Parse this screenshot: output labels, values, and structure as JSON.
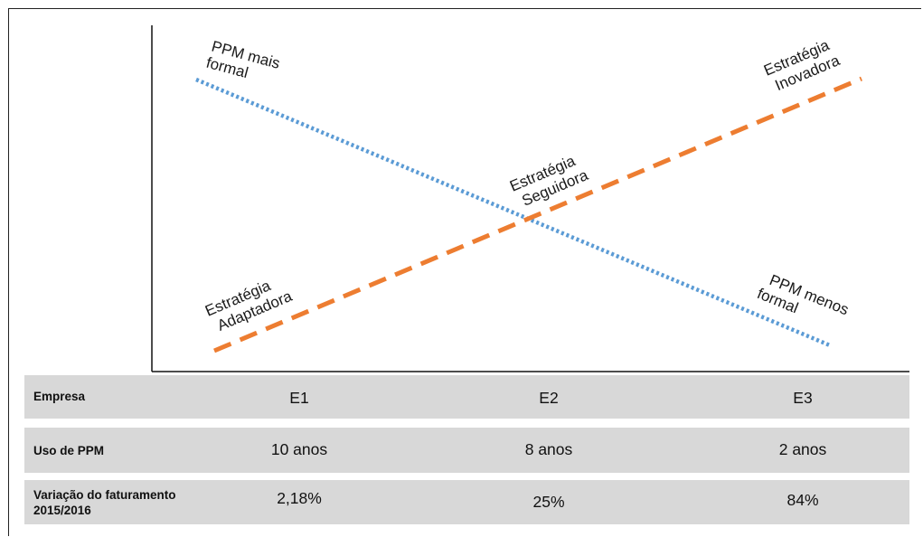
{
  "diagram": {
    "label_ppm_formal": [
      "PPM mais",
      "formal"
    ],
    "label_ppm_less_formal": [
      "PPM menos",
      "formal"
    ],
    "label_innovative": [
      "Estratégia",
      "Inovadora"
    ],
    "label_follower": [
      "Estratégia",
      "Seguidora"
    ],
    "label_adaptive": [
      "Estratégia",
      "Adaptadora"
    ],
    "colors": {
      "dotted_line": "#5b9bd5",
      "dashed_line": "#ed7d31"
    }
  },
  "table": {
    "rows": [
      {
        "header": "Empresa",
        "values": [
          "E1",
          "E2",
          "E3"
        ]
      },
      {
        "header": "Uso de PPM",
        "values": [
          "10 anos",
          "8 anos",
          "2 anos"
        ]
      },
      {
        "header_lines": [
          "Variação do faturamento",
          "2015/2016"
        ],
        "values": [
          "2,18%",
          "25%",
          "84%"
        ]
      }
    ]
  }
}
